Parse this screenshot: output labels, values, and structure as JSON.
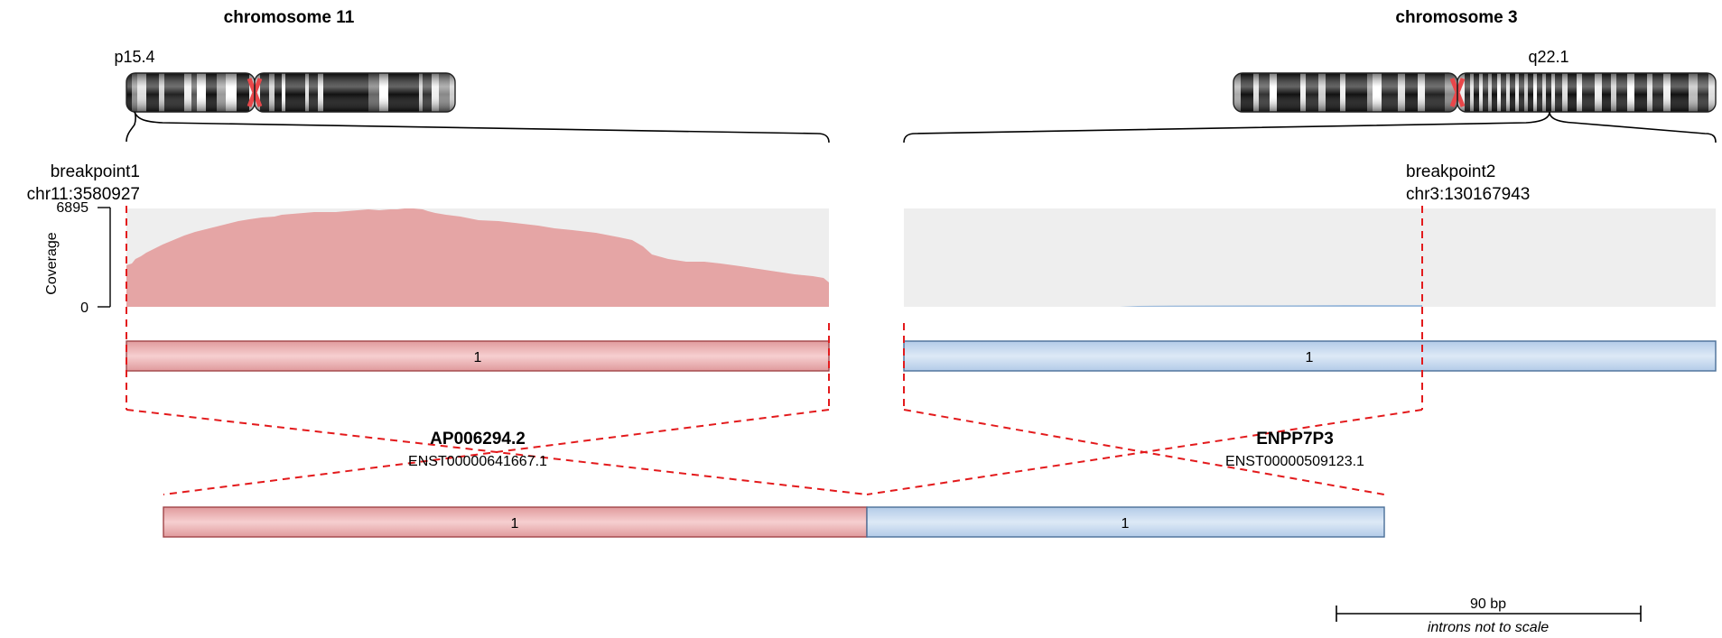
{
  "gene_a": {
    "chromosome": "chromosome 11",
    "band": "p15.4",
    "breakpoint_label": "breakpoint1",
    "breakpoint_coord": "chr11:3580927",
    "gene_name": "AP006294.2",
    "transcript": "ENST00000641667.1",
    "exon_label": "1",
    "color": "#e5a5a5",
    "border": "#a04448"
  },
  "gene_b": {
    "chromosome": "chromosome 3",
    "band": "q22.1",
    "breakpoint_label": "breakpoint2",
    "breakpoint_coord": "chr3:130167943",
    "gene_name": "ENPP7P3",
    "transcript": "ENST00000509123.1",
    "exon_label": "1",
    "color": "#c0d6ee",
    "border": "#4a6f98"
  },
  "fusion": {
    "exon_a_label": "1",
    "exon_b_label": "1"
  },
  "coverage_axis": {
    "label": "Coverage",
    "max": "6895",
    "min": "0"
  },
  "scale_bar": {
    "label": "90 bp",
    "note": "introns not to scale"
  },
  "colors": {
    "breakpoint_line": "#e31a1c",
    "track_background": "#eeeeee",
    "coverage_a": "#e5a5a5",
    "coverage_b": "#9fbcdc",
    "centromere": "#e8474a"
  }
}
